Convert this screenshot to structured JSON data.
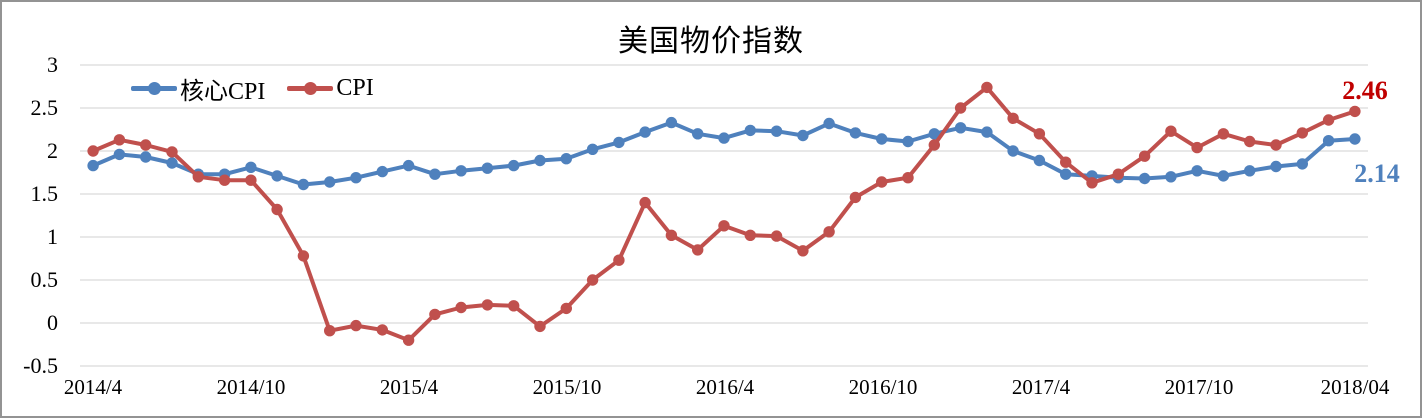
{
  "window": {
    "background": "#ffffff",
    "border_color": "#939393"
  },
  "chart_data": {
    "type": "line",
    "title": "美国物价指数",
    "xlabel": "",
    "ylabel": "",
    "ylim": [
      -0.5,
      3
    ],
    "grid": true,
    "gridline_color": "#D9D9D9",
    "legend_position": "inside-top-left",
    "y_ticks": [
      3,
      2.5,
      2,
      1.5,
      1,
      0.5,
      0,
      -0.5
    ],
    "y_tick_labels": [
      "3",
      "2.5",
      "2",
      "1.5",
      "1",
      "0.5",
      "0",
      "-0.5"
    ],
    "x_tick_labels": [
      "2014/4",
      "2014/10",
      "2015/4",
      "2015/10",
      "2016/4",
      "2016/10",
      "2017/4",
      "2017/10",
      "2018/04"
    ],
    "x_tick_indices": [
      0,
      6,
      12,
      18,
      24,
      30,
      36,
      42,
      48
    ],
    "categories": [
      "2014/4",
      "2014/5",
      "2014/6",
      "2014/7",
      "2014/8",
      "2014/9",
      "2014/10",
      "2014/11",
      "2014/12",
      "2015/1",
      "2015/2",
      "2015/3",
      "2015/4",
      "2015/5",
      "2015/6",
      "2015/7",
      "2015/8",
      "2015/9",
      "2015/10",
      "2015/11",
      "2015/12",
      "2016/1",
      "2016/2",
      "2016/3",
      "2016/4",
      "2016/5",
      "2016/6",
      "2016/7",
      "2016/8",
      "2016/9",
      "2016/10",
      "2016/11",
      "2016/12",
      "2017/1",
      "2017/2",
      "2017/3",
      "2017/4",
      "2017/5",
      "2017/6",
      "2017/7",
      "2017/8",
      "2017/9",
      "2017/10",
      "2017/11",
      "2017/12",
      "2018/1",
      "2018/2",
      "2018/3",
      "2018/4"
    ],
    "series": [
      {
        "name": "核心CPI",
        "color": "#4F81BD",
        "values": [
          1.83,
          1.96,
          1.93,
          1.86,
          1.73,
          1.73,
          1.81,
          1.71,
          1.61,
          1.64,
          1.69,
          1.76,
          1.83,
          1.73,
          1.77,
          1.8,
          1.83,
          1.89,
          1.91,
          2.02,
          2.1,
          2.22,
          2.33,
          2.2,
          2.15,
          2.24,
          2.23,
          2.18,
          2.32,
          2.21,
          2.14,
          2.11,
          2.2,
          2.27,
          2.22,
          2.0,
          1.89,
          1.73,
          1.71,
          1.69,
          1.68,
          1.7,
          1.77,
          1.71,
          1.77,
          1.82,
          1.85,
          2.12,
          2.14
        ]
      },
      {
        "name": "CPI",
        "color": "#C0504D",
        "values": [
          2.0,
          2.13,
          2.07,
          1.99,
          1.7,
          1.66,
          1.66,
          1.32,
          0.78,
          -0.09,
          -0.03,
          -0.08,
          -0.2,
          0.1,
          0.18,
          0.21,
          0.2,
          -0.04,
          0.17,
          0.5,
          0.73,
          1.4,
          1.02,
          0.85,
          1.13,
          1.02,
          1.01,
          0.84,
          1.06,
          1.46,
          1.64,
          1.69,
          2.07,
          2.5,
          2.74,
          2.38,
          2.2,
          1.87,
          1.63,
          1.73,
          1.94,
          2.23,
          2.04,
          2.2,
          2.11,
          2.07,
          2.21,
          2.36,
          2.46
        ]
      }
    ],
    "annotations": [
      {
        "text": "2.46",
        "series": "CPI",
        "color": "#C00000"
      },
      {
        "text": "2.14",
        "series": "核心CPI",
        "color": "#4F81BD"
      }
    ],
    "legend": [
      {
        "label": "核心CPI",
        "color": "#4F81BD"
      },
      {
        "label": "CPI",
        "color": "#C0504D"
      }
    ]
  }
}
